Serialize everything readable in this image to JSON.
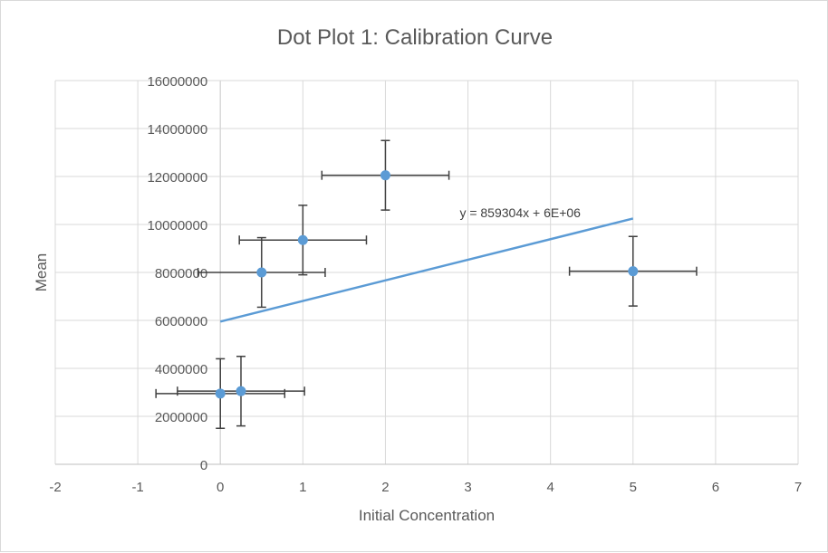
{
  "chart_data": {
    "type": "scatter",
    "title": "Dot Plot 1: Calibration Curve",
    "xlabel": "Initial Concentration",
    "ylabel": "Mean",
    "xlim": [
      -2,
      7
    ],
    "ylim": [
      0,
      16000000
    ],
    "x_ticks": [
      -2,
      -1,
      0,
      1,
      2,
      3,
      4,
      5,
      6,
      7
    ],
    "y_ticks": [
      0,
      2000000,
      4000000,
      6000000,
      8000000,
      10000000,
      12000000,
      14000000,
      16000000
    ],
    "x_tick_labels": [
      "-2",
      "-1",
      "0",
      "1",
      "2",
      "3",
      "4",
      "5",
      "6",
      "7"
    ],
    "y_tick_labels": [
      "0",
      "2000000",
      "4000000",
      "6000000",
      "8000000",
      "10000000",
      "12000000",
      "14000000",
      "16000000"
    ],
    "grid": true,
    "legend": "none",
    "marker_color": "#5B9BD5",
    "trendline_color": "#5B9BD5",
    "errorbar_color": "#404040",
    "points": [
      {
        "x": 0,
        "y": 2950000,
        "x_err": 0.78,
        "y_err": 1450000
      },
      {
        "x": 0.25,
        "y": 3050000,
        "x_err": 0.77,
        "y_err": 1450000
      },
      {
        "x": 0.5,
        "y": 8000000,
        "x_err": 0.77,
        "y_err": 1450000
      },
      {
        "x": 1,
        "y": 9350000,
        "x_err": 0.77,
        "y_err": 1450000
      },
      {
        "x": 2,
        "y": 12050000,
        "x_err": 0.77,
        "y_err": 1450000
      },
      {
        "x": 5,
        "y": 8050000,
        "x_err": 0.77,
        "y_err": 1450000
      }
    ],
    "trendline": {
      "type": "linear",
      "slope": 859304,
      "intercept": 5950000,
      "x_start": 0,
      "x_end": 5,
      "equation_label": "y = 859304x + 6E+06",
      "label_x": 2.9,
      "label_y": 10500000
    }
  }
}
